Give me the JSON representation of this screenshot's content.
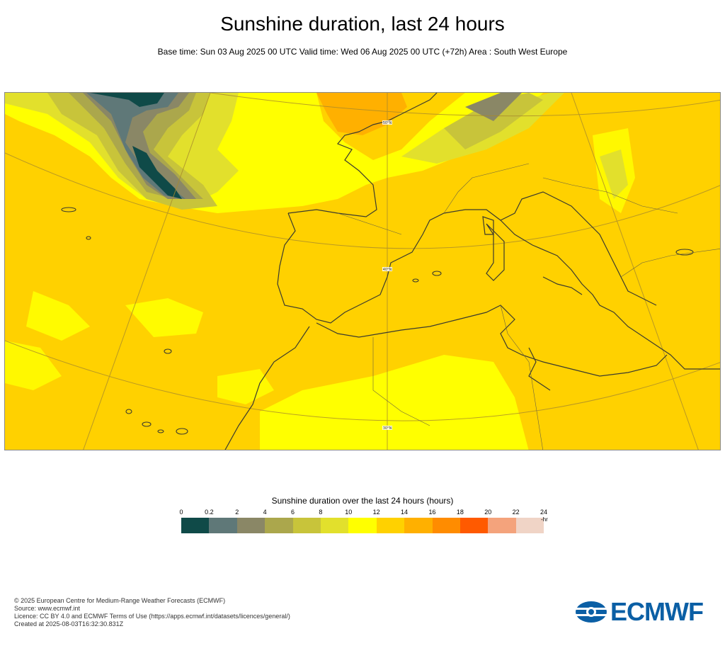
{
  "header": {
    "title": "Sunshine duration, last 24 hours",
    "subtitle": "Base time: Sun 03 Aug 2025 00 UTC Valid time: Wed 06 Aug 2025 00 UTC (+72h) Area : South West Europe"
  },
  "map": {
    "lat_labels": [
      "50°N",
      "40°N",
      "30°N"
    ]
  },
  "legend": {
    "title": "Sunshine duration over the last 24 hours (hours)",
    "unit": "-hr",
    "ticks": [
      "0",
      "0.2",
      "2",
      "4",
      "6",
      "8",
      "10",
      "12",
      "14",
      "16",
      "18",
      "20",
      "22",
      "24"
    ],
    "colors": [
      "#0f4a48",
      "#5f7878",
      "#8a8766",
      "#aba74c",
      "#c8c43a",
      "#e2e02c",
      "#ffff00",
      "#ffd100",
      "#ffb000",
      "#ff8c00",
      "#ff5a00",
      "#f4a37c",
      "#f0d4c6"
    ]
  },
  "footer": {
    "line1": "© 2025 European Centre for Medium-Range Weather Forecasts (ECMWF)",
    "line2": "Source: www.ecmwf.int",
    "line3": "Licence: CC BY 4.0 and ECMWF Terms of Use (https://apps.ecmwf.int/datasets/licences/general/)",
    "line4": "Created at 2025-08-03T16:32:30.831Z"
  },
  "logo": {
    "text": "ECMWF"
  }
}
